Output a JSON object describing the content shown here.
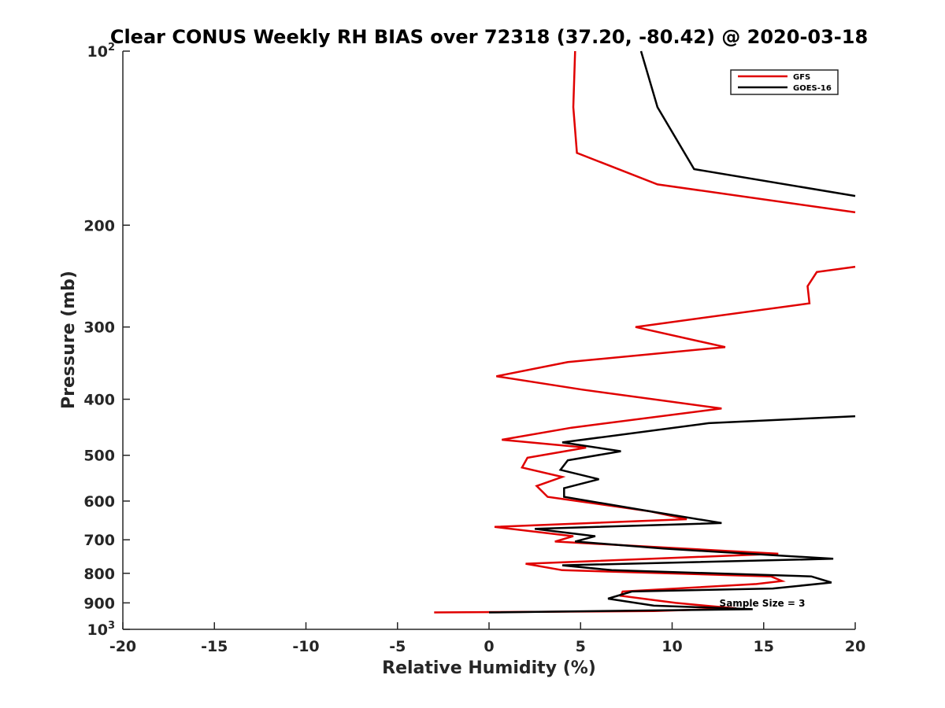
{
  "chart_data": {
    "type": "line",
    "title": "Clear CONUS Weekly RH BIAS over 72318 (37.20, -80.42) @ 2020-03-18",
    "xlabel": "Relative Humidity (%)",
    "ylabel": "Pressure (mb)",
    "xlim": [
      -20,
      20
    ],
    "ylim": [
      100,
      1000
    ],
    "y_scale": "log",
    "y_reversed": true,
    "grid": false,
    "legend_position": "top-right",
    "x_ticks": [
      "-20",
      "-15",
      "-10",
      "-5",
      "0",
      "5",
      "10",
      "15",
      "20"
    ],
    "y_ticks": [
      {
        "value": 100,
        "base": "10",
        "exp": "2"
      },
      {
        "value": 200,
        "label": "200"
      },
      {
        "value": 300,
        "label": "300"
      },
      {
        "value": 400,
        "label": "400"
      },
      {
        "value": 500,
        "label": "500"
      },
      {
        "value": 600,
        "label": "600"
      },
      {
        "value": 700,
        "label": "700"
      },
      {
        "value": 800,
        "label": "800"
      },
      {
        "value": 900,
        "label": "900"
      },
      {
        "value": 1000,
        "base": "10",
        "exp": "3"
      }
    ],
    "annotation": "Sample Size = 3",
    "series": [
      {
        "name": "GFS",
        "color": "#e00000",
        "points": [
          [
            4.7,
            100
          ],
          [
            4.6,
            125
          ],
          [
            4.8,
            150
          ],
          [
            9.2,
            170
          ],
          [
            20,
            190
          ],
          [
            null,
            null
          ],
          [
            20,
            236
          ],
          [
            17.9,
            241
          ],
          [
            17.4,
            255
          ],
          [
            17.5,
            273
          ],
          [
            8.0,
            300
          ],
          [
            12.9,
            325
          ],
          [
            4.3,
            345
          ],
          [
            0.4,
            365
          ],
          [
            5.1,
            385
          ],
          [
            12.7,
            415
          ],
          [
            4.5,
            448
          ],
          [
            0.7,
            470
          ],
          [
            5.3,
            485
          ],
          [
            2.1,
            505
          ],
          [
            1.8,
            525
          ],
          [
            4.0,
            545
          ],
          [
            2.6,
            565
          ],
          [
            3.2,
            590
          ],
          [
            8.8,
            625
          ],
          [
            10.8,
            645
          ],
          [
            0.3,
            665
          ],
          [
            4.6,
            690
          ],
          [
            3.6,
            705
          ],
          [
            15.8,
            740
          ],
          [
            2.0,
            770
          ],
          [
            4.0,
            790
          ],
          [
            15.4,
            810
          ],
          [
            16.0,
            825
          ],
          [
            14.6,
            835
          ],
          [
            7.3,
            860
          ],
          [
            7.2,
            875
          ],
          [
            10.2,
            900
          ],
          [
            11.8,
            910
          ],
          [
            13.5,
            920
          ],
          [
            9.0,
            930
          ],
          [
            -3.0,
            935
          ]
        ]
      },
      {
        "name": "GOES-16",
        "color": "#000000",
        "points": [
          [
            8.3,
            100
          ],
          [
            9.2,
            125
          ],
          [
            11.2,
            160
          ],
          [
            20,
            178
          ],
          [
            null,
            null
          ],
          [
            20,
            428
          ],
          [
            12.0,
            440
          ],
          [
            4.0,
            475
          ],
          [
            7.2,
            492
          ],
          [
            4.3,
            510
          ],
          [
            3.9,
            530
          ],
          [
            6.0,
            550
          ],
          [
            4.1,
            570
          ],
          [
            4.1,
            590
          ],
          [
            8.8,
            625
          ],
          [
            12.7,
            655
          ],
          [
            2.5,
            670
          ],
          [
            5.8,
            690
          ],
          [
            4.7,
            705
          ],
          [
            9.5,
            725
          ],
          [
            18.8,
            755
          ],
          [
            4.0,
            775
          ],
          [
            6.7,
            790
          ],
          [
            17.6,
            810
          ],
          [
            18.7,
            830
          ],
          [
            15.5,
            850
          ],
          [
            7.8,
            860
          ],
          [
            6.5,
            885
          ],
          [
            9.0,
            910
          ],
          [
            12.5,
            918
          ],
          [
            14.4,
            923
          ],
          [
            0.0,
            935
          ]
        ]
      }
    ]
  }
}
